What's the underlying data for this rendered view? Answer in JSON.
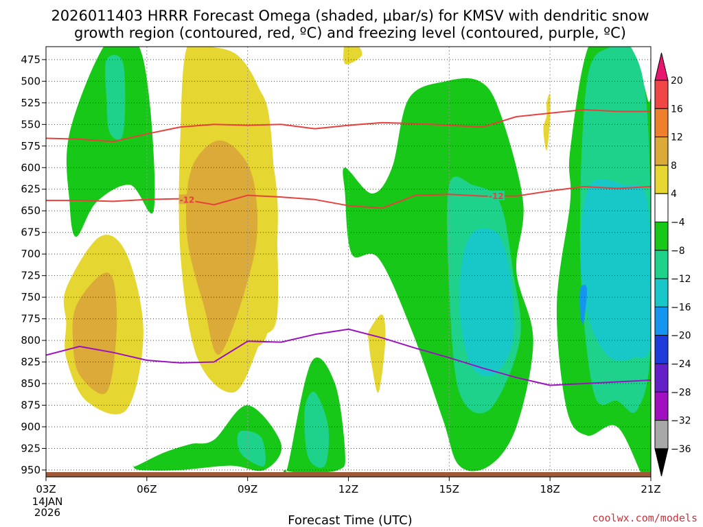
{
  "chart_data": {
    "type": "time-height contour",
    "title_line1": "2026011403 HRRR Forecast Omega (shaded, μbar/s) for KMSV with dendritic snow",
    "title_line2": "growth region (contoured, red, ºC) and freezing level (contoured, purple, ºC)",
    "xlabel": "Forecast Time (UTC)",
    "credit": "coolwx.com/models",
    "x_ticks": [
      "03Z",
      "06Z",
      "09Z",
      "12Z",
      "15Z",
      "18Z",
      "21Z"
    ],
    "x_hours": [
      3,
      6,
      9,
      12,
      15,
      18,
      21
    ],
    "x_date_line1": "14JAN",
    "x_date_line2": "2026",
    "y_ticks": [
      475,
      500,
      525,
      550,
      575,
      600,
      625,
      650,
      675,
      700,
      725,
      750,
      775,
      800,
      825,
      850,
      875,
      900,
      925,
      950
    ],
    "xlim_hours": [
      3,
      21
    ],
    "ylim_hpa": [
      460,
      958
    ],
    "colorbar": {
      "labels": [
        "20",
        "16",
        "12",
        "8",
        "4",
        "−4",
        "−8",
        "−12",
        "−16",
        "−20",
        "−24",
        "−28",
        "−32",
        "−36"
      ],
      "colors": [
        "#e8146e",
        "#f04646",
        "#ee7f2c",
        "#dcaa38",
        "#e6d632",
        "#ffffff",
        "#18c818",
        "#1ed28c",
        "#18c8c8",
        "#1496f0",
        "#1e3cdc",
        "#6420c8",
        "#a010c0",
        "#a8a8a8",
        "#000000"
      ]
    },
    "dgz_isotherm_label": "-12",
    "dgz_contours": [
      {
        "name": "upper -12C",
        "hours": [
          3,
          4,
          5,
          6,
          7,
          8,
          9,
          10,
          11,
          12,
          13,
          14,
          15,
          16,
          17,
          18,
          19,
          20,
          21
        ],
        "hpa": [
          566,
          567,
          570,
          561,
          553,
          550,
          551,
          550,
          555,
          551,
          548,
          549,
          551,
          553,
          541,
          537,
          533,
          535,
          535
        ]
      },
      {
        "name": "lower -12C",
        "hours": [
          3,
          4,
          5,
          6,
          7,
          8,
          9,
          10,
          11,
          12,
          13,
          14,
          15,
          16,
          17,
          18,
          19,
          20,
          21
        ],
        "hpa": [
          638,
          638,
          639,
          637,
          636,
          643,
          632,
          634,
          637,
          644,
          647,
          632,
          631,
          633,
          633,
          627,
          622,
          624,
          622
        ]
      }
    ],
    "freezing_level": {
      "hours": [
        3,
        4,
        5,
        6,
        7,
        8,
        9,
        10,
        11,
        12,
        13,
        14,
        15,
        16,
        17,
        18,
        19,
        20,
        21
      ],
      "hpa": [
        817,
        807,
        814,
        823,
        826,
        825,
        801,
        802,
        793,
        787,
        797,
        809,
        820,
        832,
        843,
        852,
        850,
        848,
        846
      ]
    },
    "omega_regions": [
      {
        "level": "-4",
        "hours": [
          3.7,
          4.8,
          5.7,
          6.1,
          6.2,
          5.5,
          4.5,
          3.9,
          3.7
        ],
        "hpa": [
          560,
          455,
          455,
          530,
          650,
          620,
          640,
          680,
          640
        ]
      },
      {
        "level": "-8",
        "hours": [
          4.8,
          5.3,
          5.3,
          4.9,
          4.8
        ],
        "hpa": [
          475,
          480,
          560,
          560,
          520
        ]
      },
      {
        "level": "-4",
        "hours": [
          5.7,
          6.5,
          7.3,
          8.0,
          9.0,
          10.0,
          9.5,
          8.5,
          7.0,
          5.8,
          5.6
        ],
        "hpa": [
          945,
          930,
          920,
          915,
          875,
          920,
          950,
          945,
          950,
          950,
          945
        ]
      },
      {
        "level": "-8",
        "hours": [
          8.8,
          9.4,
          9.5,
          8.9,
          8.7
        ],
        "hpa": [
          905,
          912,
          945,
          935,
          920
        ]
      },
      {
        "level": "-4",
        "hours": [
          10.2,
          10.9,
          11.6,
          11.9,
          11.7,
          10.6,
          10.1
        ],
        "hpa": [
          945,
          825,
          850,
          930,
          950,
          953,
          950
        ]
      },
      {
        "level": "-8",
        "hours": [
          10.7,
          11.0,
          11.4,
          11.3,
          10.8
        ],
        "hpa": [
          880,
          860,
          900,
          945,
          935
        ]
      },
      {
        "level": "-4",
        "hours": [
          11.9,
          12.7,
          13.3,
          13.8,
          14.9,
          15.9,
          16.5,
          17.2,
          17.0,
          17.5,
          17.0,
          16.2,
          15.3,
          14.8,
          13.9,
          12.9,
          12.1,
          11.9
        ],
        "hpa": [
          600,
          630,
          600,
          520,
          500,
          500,
          535,
          640,
          720,
          800,
          900,
          945,
          945,
          890,
          790,
          705,
          700,
          630
        ]
      },
      {
        "level": "-8",
        "hours": [
          15.0,
          15.7,
          16.5,
          16.9,
          17.1,
          16.2,
          15.3,
          15.0
        ],
        "hpa": [
          620,
          620,
          640,
          720,
          800,
          880,
          860,
          740
        ]
      },
      {
        "level": "-12",
        "hours": [
          15.6,
          16.4,
          16.8,
          16.9,
          16.3,
          15.6,
          15.3
        ],
        "hpa": [
          680,
          675,
          720,
          800,
          840,
          825,
          750
        ]
      },
      {
        "level": "-4",
        "hours": [
          18.6,
          19.2,
          20.3,
          20.9,
          21.0,
          21.0,
          20.8,
          20.0,
          19.1,
          18.5,
          18.2,
          18.6
        ],
        "hpa": [
          580,
          455,
          455,
          520,
          560,
          950,
          960,
          900,
          910,
          880,
          760,
          640
        ]
      },
      {
        "level": "-8",
        "hours": [
          19.1,
          19.8,
          20.4,
          20.9,
          21.0,
          20.6,
          20.0,
          19.3,
          18.9
        ],
        "hpa": [
          500,
          460,
          460,
          540,
          800,
          880,
          870,
          860,
          700
        ]
      },
      {
        "level": "-12",
        "hours": [
          19.2,
          20.2,
          20.9,
          21.0,
          20.5,
          19.8,
          19.2,
          18.9
        ],
        "hpa": [
          620,
          620,
          640,
          800,
          820,
          820,
          780,
          700
        ]
      },
      {
        "level": "-16",
        "hours": [
          18.9,
          19.1,
          19.0,
          18.9
        ],
        "hpa": [
          740,
          740,
          780,
          770
        ]
      },
      {
        "level": "4",
        "hours": [
          7.2,
          7.9,
          8.7,
          9.3,
          9.7,
          9.9,
          9.4,
          8.6,
          7.5,
          7.0,
          7.0
        ],
        "hpa": [
          460,
          460,
          470,
          505,
          560,
          760,
          800,
          860,
          820,
          700,
          560
        ]
      },
      {
        "level": "4",
        "hours": [
          7.3,
          8.0,
          9.0,
          9.5,
          9.9,
          9.6,
          8.8,
          8.0,
          7.4,
          7.3
        ],
        "hpa": [
          535,
          525,
          525,
          550,
          650,
          790,
          810,
          820,
          760,
          650
        ]
      },
      {
        "level": "8",
        "hours": [
          7.3,
          8.0,
          8.7,
          9.2,
          9.2,
          8.2,
          7.7,
          7.2
        ],
        "hpa": [
          605,
          570,
          580,
          620,
          700,
          815,
          760,
          680
        ]
      },
      {
        "level": "4",
        "hours": [
          3.6,
          4.6,
          5.4,
          5.9,
          5.4,
          4.2,
          3.6,
          3.6
        ],
        "hpa": [
          740,
          680,
          700,
          790,
          880,
          870,
          820,
          780
        ]
      },
      {
        "level": "8",
        "hours": [
          3.9,
          4.6,
          5.0,
          5.1,
          4.8,
          4.0,
          3.8
        ],
        "hpa": [
          760,
          725,
          730,
          790,
          860,
          840,
          800
        ]
      },
      {
        "level": "4",
        "hours": [
          12.6,
          13.0,
          13.1,
          12.9,
          12.7,
          12.6
        ],
        "hpa": [
          790,
          770,
          800,
          860,
          830,
          800
        ]
      },
      {
        "level": "4",
        "hours": [
          11.9,
          12.2,
          12.4,
          11.9
        ],
        "hpa": [
          455,
          455,
          470,
          480
        ]
      },
      {
        "level": "4",
        "hours": [
          17.9,
          18.0,
          18.0,
          17.9,
          17.8,
          17.9
        ],
        "hpa": [
          525,
          515,
          545,
          580,
          555,
          540
        ]
      }
    ]
  }
}
